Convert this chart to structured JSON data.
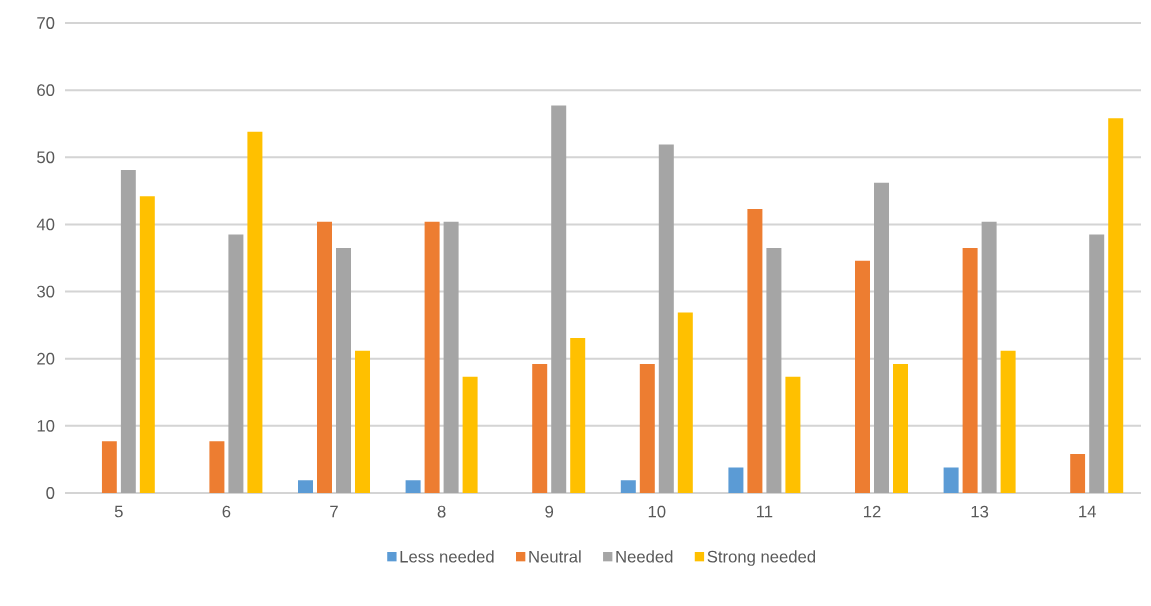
{
  "chart_data": {
    "type": "bar",
    "categories": [
      "5",
      "6",
      "7",
      "8",
      "9",
      "10",
      "11",
      "12",
      "13",
      "14"
    ],
    "series": [
      {
        "name": "Less needed",
        "color": "#5b9bd5",
        "values": [
          0,
          0,
          1.9,
          1.9,
          0,
          1.9,
          3.8,
          0,
          3.8,
          0
        ]
      },
      {
        "name": "Neutral",
        "color": "#ed7d31",
        "values": [
          7.7,
          7.7,
          40.4,
          40.4,
          19.2,
          19.2,
          42.3,
          34.6,
          36.5,
          5.8
        ]
      },
      {
        "name": "Needed",
        "color": "#a5a5a5",
        "values": [
          48.1,
          38.5,
          36.5,
          40.4,
          57.7,
          51.9,
          36.5,
          46.2,
          40.4,
          38.5
        ]
      },
      {
        "name": "Strong needed",
        "color": "#ffc000",
        "values": [
          44.2,
          53.8,
          21.2,
          17.3,
          23.1,
          26.9,
          17.3,
          19.2,
          21.2,
          55.8
        ]
      }
    ],
    "ylim": [
      0,
      70
    ],
    "yticks": [
      0,
      10,
      20,
      30,
      40,
      50,
      60,
      70
    ],
    "grid": "y",
    "legend": "bottom"
  }
}
